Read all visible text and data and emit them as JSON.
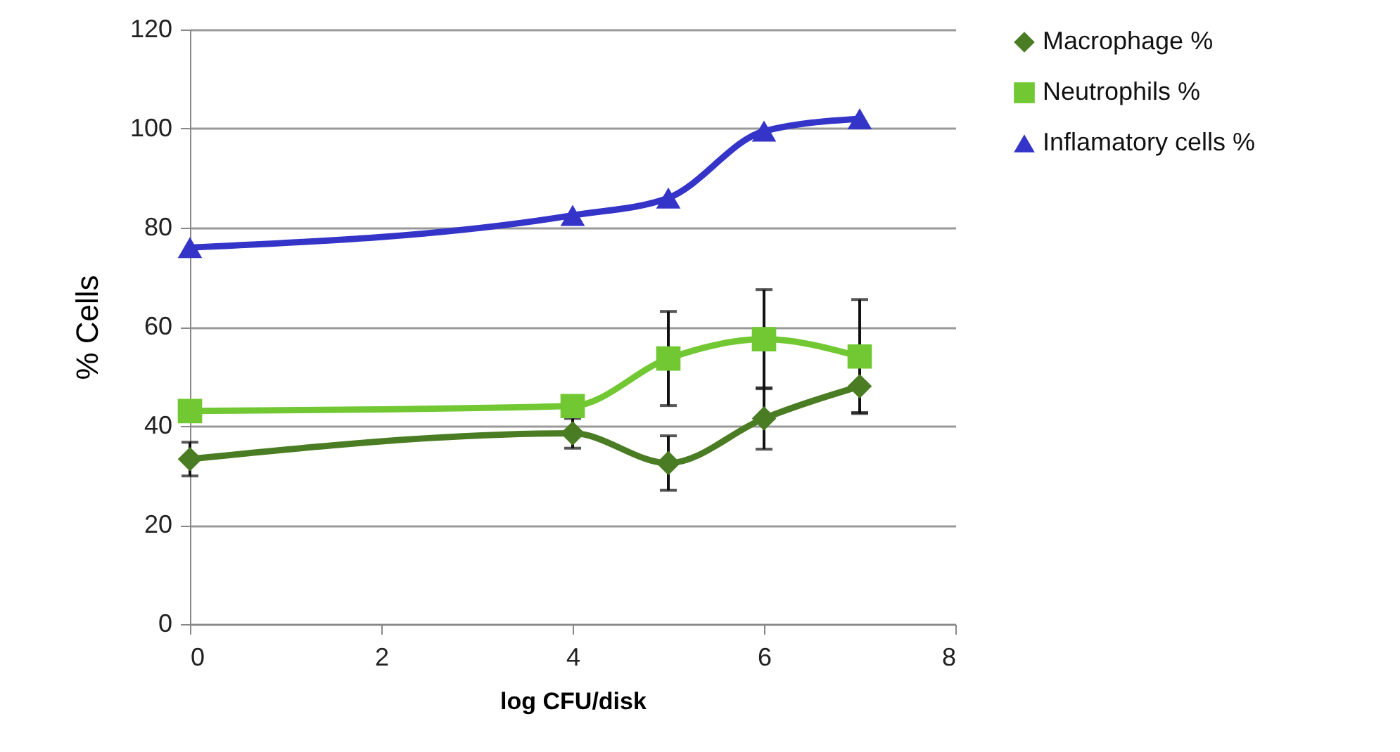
{
  "chart_data": {
    "type": "line",
    "xlabel": "log CFU/disk",
    "ylabel": "% Cells",
    "xlim": [
      0,
      8
    ],
    "xticks": [
      0,
      2,
      4,
      6,
      8
    ],
    "ylim": [
      0,
      120
    ],
    "yticks": [
      0,
      20,
      40,
      60,
      80,
      100,
      120
    ],
    "grid": "y",
    "legend": "right",
    "line_style": "solid",
    "x": [
      0,
      4,
      5,
      6,
      7
    ],
    "series": [
      {
        "name": "Macrophage %",
        "color": "#4a7d23",
        "marker": "diamond",
        "values": [
          33.3,
          38.5,
          32.5,
          41.5,
          48
        ],
        "errors": [
          3.4,
          3,
          5.5,
          6.2,
          5.3
        ]
      },
      {
        "name": "Neutrophils %",
        "color": "#72c832",
        "marker": "square",
        "values": [
          43,
          44,
          53.6,
          57.5,
          54
        ],
        "errors": [
          null,
          null,
          9.5,
          10,
          11.5
        ]
      },
      {
        "name": "Inflamatory cells %",
        "color": "#3434c8",
        "marker": "triangle",
        "values": [
          76,
          82.5,
          86,
          99.5,
          102
        ]
      }
    ]
  }
}
